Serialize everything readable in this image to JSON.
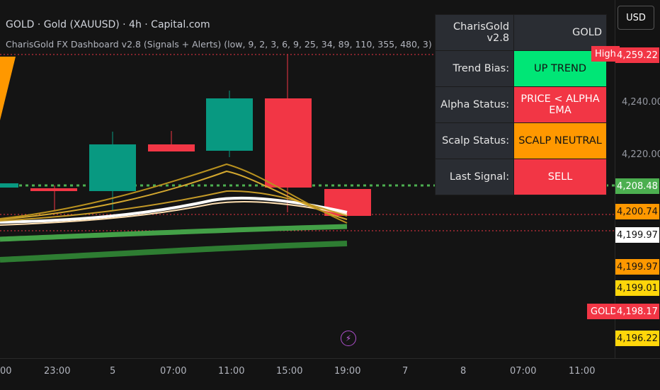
{
  "header": {
    "title": "GOLD · Gold (XAUUSD) · 4h · Capital.com",
    "indicator": "CharisGold FX Dashboard v2.8 (Signals + Alerts) (low, 9, 2, 3, 6, 9, 25, 34, 89, 110, 355, 480, 3)"
  },
  "currency_button": "USD",
  "price_axis": {
    "labels": [
      "4,240.00",
      "4,220.00"
    ],
    "tags": [
      {
        "value": "4,259.22",
        "bg": "#f23645",
        "fg": "#ffffff"
      },
      {
        "value": "4,208.48",
        "bg": "#4caf50",
        "fg": "#ffffff"
      },
      {
        "value": "4,200.74",
        "bg": "#ff9800",
        "fg": "#131313"
      },
      {
        "value": "4,199.97",
        "bg": "#ffffff",
        "fg": "#131313"
      },
      {
        "value": "4,199.97",
        "bg": "#ff9800",
        "fg": "#131313"
      },
      {
        "value": "4,199.01",
        "bg": "#ffd60a",
        "fg": "#131313"
      },
      {
        "value": "4,198.17",
        "bg": "#f23645",
        "fg": "#ffffff"
      },
      {
        "value": "4,196.22",
        "bg": "#ffd60a",
        "fg": "#131313"
      }
    ],
    "high_label": "High",
    "gold_label": "GOLD"
  },
  "time_axis": [
    "00",
    "23:00",
    "5",
    "07:00",
    "11:00",
    "15:00",
    "19:00",
    "7",
    "8",
    "07:00",
    "11:00"
  ],
  "dashboard": {
    "title": "CharisGold v2.8",
    "symbol": "GOLD",
    "rows": [
      {
        "label": "Trend Bias:",
        "value": "UP TREND",
        "bg": "#00e676",
        "fg": "#131313"
      },
      {
        "label": "Alpha Status:",
        "value": "PRICE < ALPHA EMA",
        "bg": "#f23645",
        "fg": "#ffffff"
      },
      {
        "label": "Scalp Status:",
        "value": "SCALP NEUTRAL",
        "bg": "#ff9800",
        "fg": "#131313"
      },
      {
        "label": "Last Signal:",
        "value": "SELL",
        "bg": "#f23645",
        "fg": "#ffffff"
      }
    ]
  },
  "colors": {
    "bull": "#089981",
    "bear": "#f23645",
    "dotted_green": "#4caf50",
    "accent_orange": "#ff9800"
  },
  "icons": {
    "events": "lightning-icon"
  }
}
